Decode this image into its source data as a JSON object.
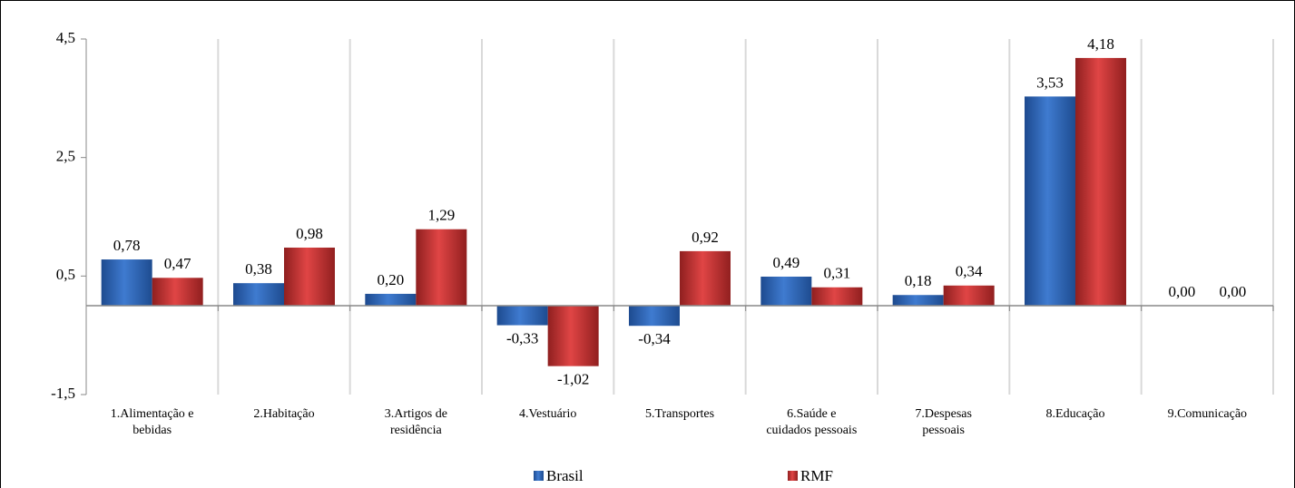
{
  "chart_data": {
    "type": "bar",
    "categories": [
      "1.Alimentação e bebidas",
      "2.Habitação",
      "3.Artigos de residência",
      "4.Vestuário",
      "5.Transportes",
      "6.Saúde e cuidados pessoais",
      "7.Despesas pessoais",
      "8.Educação",
      "9.Comunicação"
    ],
    "series": [
      {
        "name": "Brasil",
        "color": "#2f67b8",
        "values": [
          0.78,
          0.38,
          0.2,
          -0.33,
          -0.34,
          0.49,
          0.18,
          3.53,
          0.0
        ],
        "value_labels": [
          "0,78",
          "0,38",
          "0,20",
          "-0,33",
          "-0,34",
          "0,49",
          "0,18",
          "3,53",
          "0,00"
        ]
      },
      {
        "name": "RMF",
        "color": "#c5302f",
        "values": [
          0.47,
          0.98,
          1.29,
          -1.02,
          0.92,
          0.31,
          0.34,
          4.18,
          0.0
        ],
        "value_labels": [
          "0,47",
          "0,98",
          "1,29",
          "-1,02",
          "0,92",
          "0,31",
          "0,34",
          "4,18",
          "0,00"
        ]
      }
    ],
    "ylim": [
      -1.5,
      4.5
    ],
    "yticks": [
      {
        "value": -1.5,
        "label": "-1,5"
      },
      {
        "value": 0.5,
        "label": "0,5"
      },
      {
        "value": 2.5,
        "label": "2,5"
      },
      {
        "value": 4.5,
        "label": "4,5"
      }
    ],
    "negative_label_color": "#ff0000",
    "grid": true,
    "legend": "bottom"
  }
}
